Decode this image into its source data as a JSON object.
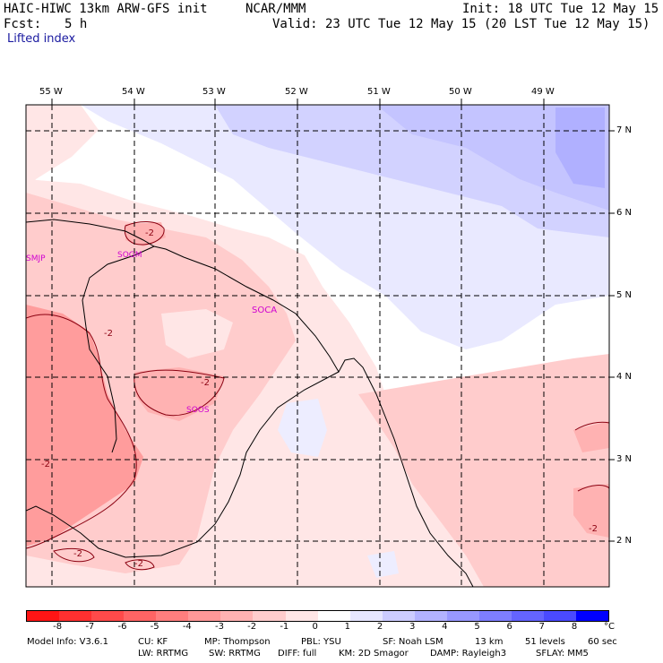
{
  "header": {
    "model": "HAIC-HIWC 13km ARW-GFS init",
    "org": "NCAR/MMM",
    "init": "Init: 18 UTC Tue 12 May 15",
    "fcst_label": "Fcst:",
    "fcst_value": "5 h",
    "valid": "Valid: 23 UTC Tue 12 May 15 (20 LST Tue 12 May 15)",
    "field": "Lifted index"
  },
  "lon_labels": [
    "55 W",
    "54 W",
    "53 W",
    "52 W",
    "51 W",
    "50 W",
    "49 W"
  ],
  "lat_labels": [
    "7 N",
    "6 N",
    "5 N",
    "4 N",
    "3 N",
    "2 N"
  ],
  "stations": [
    "SMJP",
    "SOGM",
    "SOCA",
    "SOOS"
  ],
  "contour_labels": [
    "-2",
    "-2",
    "-2",
    "-2",
    "-2",
    "-2",
    "-2"
  ],
  "colorbar": {
    "levels": [
      "-8",
      "-7",
      "-6",
      "-5",
      "-4",
      "-3",
      "-2",
      "-1",
      "0",
      "1",
      "2",
      "3",
      "4",
      "5",
      "6",
      "7",
      "8"
    ],
    "unit": "°C",
    "colors": [
      "#ff1515",
      "#ff3030",
      "#ff4a4a",
      "#ff6464",
      "#ff7e7e",
      "#ff9898",
      "#ffb2b2",
      "#ffcccc",
      "#ffe6e6",
      "#ffffff",
      "#e6e6ff",
      "#ccccff",
      "#b2b2ff",
      "#9898ff",
      "#7e7eff",
      "#6464ff",
      "#4a4aff",
      "#0000ff"
    ]
  },
  "footer": {
    "line1": [
      "Model Info: V3.6.1",
      "CU: KF",
      "MP: Thompson",
      "PBL: YSU",
      "SF: Noah LSM",
      "13 km",
      "51 levels",
      "60 sec"
    ],
    "line2": [
      "LW: RRTMG",
      "SW: RRTMG",
      "DIFF: full",
      "KM: 2D Smagor",
      "DAMP: Rayleigh3",
      "SFLAY: MM5"
    ]
  }
}
